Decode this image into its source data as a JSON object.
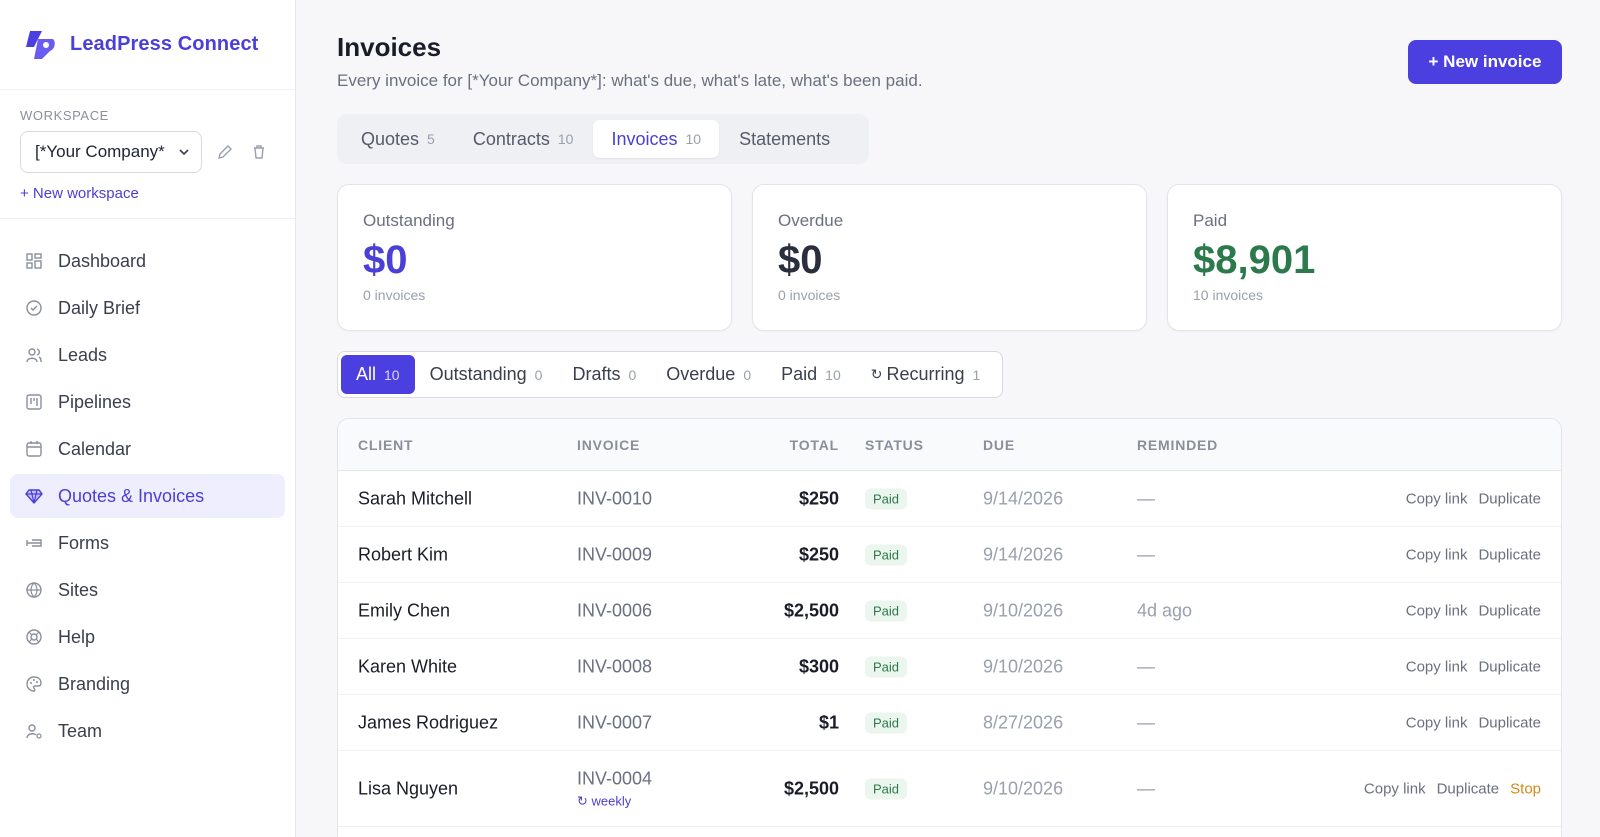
{
  "brand": {
    "name": "LeadPress Connect",
    "logo_icon": "leadpress-logo-icon",
    "accent": "#4b3fe0"
  },
  "workspace": {
    "label": "WORKSPACE",
    "selected": "[*Your Company*",
    "new_label": "+ New workspace"
  },
  "nav": [
    {
      "label": "Dashboard",
      "icon": "grid-icon"
    },
    {
      "label": "Daily Brief",
      "icon": "check-circle-icon"
    },
    {
      "label": "Leads",
      "icon": "users-icon"
    },
    {
      "label": "Pipelines",
      "icon": "kanban-icon"
    },
    {
      "label": "Calendar",
      "icon": "calendar-icon"
    },
    {
      "label": "Quotes & Invoices",
      "icon": "diamond-icon",
      "active": true
    },
    {
      "label": "Forms",
      "icon": "form-icon"
    },
    {
      "label": "Sites",
      "icon": "globe-icon"
    },
    {
      "label": "Help",
      "icon": "lifebuoy-icon"
    },
    {
      "label": "Branding",
      "icon": "palette-icon"
    },
    {
      "label": "Team",
      "icon": "user-gear-icon"
    }
  ],
  "header": {
    "title": "Invoices",
    "subtitle": "Every invoice for [*Your Company*]: what's due, what's late, what's been paid.",
    "new_button": "+ New invoice"
  },
  "doc_tabs": [
    {
      "label": "Quotes",
      "count": "5"
    },
    {
      "label": "Contracts",
      "count": "10"
    },
    {
      "label": "Invoices",
      "count": "10",
      "active": true
    },
    {
      "label": "Statements",
      "count": ""
    }
  ],
  "cards": [
    {
      "label": "Outstanding",
      "value": "$0",
      "sub": "0 invoices",
      "color": "#4a3fd6"
    },
    {
      "label": "Overdue",
      "value": "$0",
      "sub": "0 invoices",
      "color": "#2b2f3d"
    },
    {
      "label": "Paid",
      "value": "$8,901",
      "sub": "10 invoices",
      "color": "#2c7a4b"
    }
  ],
  "filters": [
    {
      "label": "All",
      "count": "10",
      "active": true
    },
    {
      "label": "Outstanding",
      "count": "0"
    },
    {
      "label": "Drafts",
      "count": "0"
    },
    {
      "label": "Overdue",
      "count": "0"
    },
    {
      "label": "Paid",
      "count": "10"
    },
    {
      "label": "Recurring",
      "count": "1",
      "icon": "↻"
    }
  ],
  "table": {
    "headers": {
      "client": "CLIENT",
      "invoice": "INVOICE",
      "total": "TOTAL",
      "status": "STATUS",
      "due": "DUE",
      "reminded": "REMINDED"
    },
    "actions": {
      "copy": "Copy link",
      "duplicate": "Duplicate",
      "stop": "Stop"
    },
    "rows": [
      {
        "client": "Sarah Mitchell",
        "invoice": "INV-0010",
        "total": "$250",
        "status": "Paid",
        "due": "9/14/2026",
        "reminded": "—"
      },
      {
        "client": "Robert Kim",
        "invoice": "INV-0009",
        "total": "$250",
        "status": "Paid",
        "due": "9/14/2026",
        "reminded": "—"
      },
      {
        "client": "Emily Chen",
        "invoice": "INV-0006",
        "total": "$2,500",
        "status": "Paid",
        "due": "9/10/2026",
        "reminded": "4d ago"
      },
      {
        "client": "Karen White",
        "invoice": "INV-0008",
        "total": "$300",
        "status": "Paid",
        "due": "9/10/2026",
        "reminded": "—"
      },
      {
        "client": "James Rodriguez",
        "invoice": "INV-0007",
        "total": "$1",
        "status": "Paid",
        "due": "8/27/2026",
        "reminded": "—"
      },
      {
        "client": "Lisa Nguyen",
        "invoice": "INV-0004",
        "recurring": "↻ weekly",
        "total": "$2,500",
        "status": "Paid",
        "due": "9/10/2026",
        "reminded": "—",
        "stoppable": true
      }
    ]
  }
}
